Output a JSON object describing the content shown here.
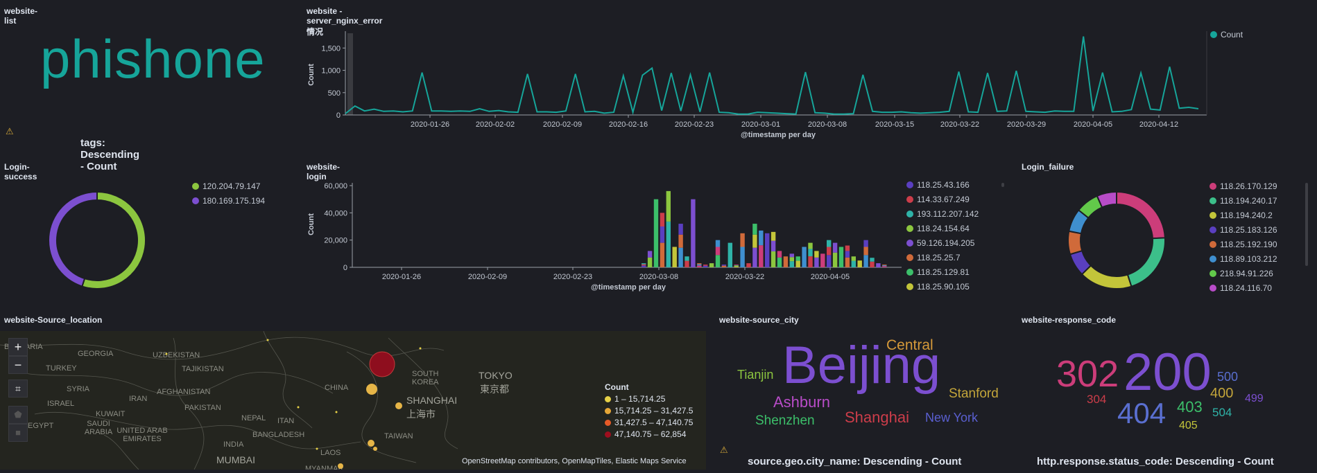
{
  "panels": {
    "website_list": {
      "title": "website-list",
      "value": "phishone",
      "agg_title": "tags: Descending - Count"
    },
    "nginx_error": {
      "title": "website - server_nginx_error 情况",
      "ylabel": "Count",
      "xlabel": "@timestamp per day",
      "yticks": [
        "0",
        "500",
        "1,000",
        "1,500"
      ],
      "xticks": [
        "2020-01-26",
        "2020-02-02",
        "2020-02-09",
        "2020-02-16",
        "2020-02-23",
        "2020-03-01",
        "2020-03-08",
        "2020-03-15",
        "2020-03-22",
        "2020-03-29",
        "2020-04-05",
        "2020-04-12"
      ],
      "legend": "Count"
    },
    "login_success": {
      "title": "Login-success",
      "legend": [
        "120.204.79.147",
        "180.169.175.194"
      ]
    },
    "website_login": {
      "title": "website-login",
      "ylabel": "Count",
      "xlabel": "@timestamp per day",
      "yticks": [
        "0",
        "20,000",
        "40,000",
        "60,000"
      ],
      "xticks": [
        "2020-01-26",
        "2020-02-09",
        "2020-02-23",
        "2020-03-08",
        "2020-03-22",
        "2020-04-05"
      ],
      "legend": [
        "118.25.43.166",
        "114.33.67.249",
        "193.112.207.142",
        "118.24.154.64",
        "59.126.194.205",
        "118.25.25.7",
        "118.25.129.81",
        "118.25.90.105"
      ]
    },
    "login_failure": {
      "title": "Login_failure",
      "legend": [
        "118.26.170.129",
        "118.194.240.17",
        "118.194.240.2",
        "118.25.183.126",
        "118.25.192.190",
        "118.89.103.212",
        "218.94.91.226",
        "118.24.116.70"
      ]
    },
    "source_location": {
      "title": "website-Source_location",
      "zoom_in": "+",
      "zoom_out": "−",
      "labels": [
        "BULGARIA",
        "GEORGIA",
        "UZBEKISTAN",
        "TURKEY",
        "TAJIKISTAN",
        "SYRIA",
        "AFGHANISTAN",
        "IRAN",
        "ISRAEL",
        "PAKISTAN",
        "KUWAIT",
        "NEPAL",
        "EGYPT",
        "SAUDI ARABIA",
        "UNITED ARAB EMIRATES",
        "INDIA",
        "BANGLADESH",
        "MUMBAI",
        "CHINA",
        "SOUTH KOREA",
        "TOKYO",
        "東京都",
        "SHANGHAI",
        "上海市",
        "TAIWAN",
        "LAOS",
        "MYANMAR",
        "ITAN"
      ],
      "legend_title": "Count",
      "legend": [
        "1 – 15,714.25",
        "15,714.25 – 31,427.5",
        "31,427.5 – 47,140.75",
        "47,140.75 – 62,854"
      ],
      "attribution": "OpenStreetMap contributors, OpenMapTiles, Elastic Maps Service"
    },
    "source_city": {
      "title": "website-source_city",
      "agg_title": "source.geo.city_name: Descending - Count",
      "words": [
        "Beijing",
        "Central",
        "Tianjin",
        "Ashburn",
        "Stanford",
        "Shenzhen",
        "Shanghai",
        "New York"
      ]
    },
    "response_code": {
      "title": "website-response_code",
      "agg_title": "http.response.status_code: Descending - Count",
      "words": [
        "200",
        "302",
        "404",
        "500",
        "400",
        "304",
        "403",
        "504",
        "405",
        "499"
      ]
    }
  },
  "colors": {
    "teal": "#16a59a",
    "green": "#8cc63f",
    "purple": "#7c4fd0"
  },
  "chart_data": [
    {
      "type": "line",
      "title": "website - server_nginx_error 情况",
      "xlabel": "@timestamp per day",
      "ylabel": "Count",
      "ylim": [
        0,
        1800
      ],
      "series": [
        {
          "name": "Count",
          "values": [
            30,
            200,
            90,
            130,
            80,
            90,
            70,
            90,
            950,
            90,
            90,
            80,
            90,
            80,
            140,
            80,
            100,
            70,
            60,
            920,
            70,
            70,
            60,
            90,
            920,
            70,
            80,
            40,
            60,
            880,
            60,
            890,
            1050,
            100,
            940,
            90,
            900,
            70,
            950,
            60,
            50,
            20,
            20,
            60,
            50,
            40,
            30,
            20,
            960,
            50,
            40,
            20,
            20,
            30,
            900,
            80,
            60,
            60,
            70,
            50,
            40,
            50,
            60,
            80,
            970,
            70,
            60,
            940,
            80,
            90,
            990,
            80,
            70,
            60,
            90,
            80,
            80,
            1760,
            90,
            950,
            70,
            80,
            120,
            940,
            130,
            110,
            1080,
            150,
            170,
            140
          ]
        }
      ]
    },
    {
      "type": "pie",
      "title": "Login-success",
      "categories": [
        "120.204.79.147",
        "180.169.175.194"
      ],
      "values": [
        55,
        45
      ]
    },
    {
      "type": "bar",
      "title": "website-login",
      "xlabel": "@timestamp per day",
      "ylabel": "Count",
      "ylim": [
        0,
        60000
      ],
      "categories_note": "daily bars from 2020-03-05 to 2020-04-18",
      "values": [
        3000,
        12000,
        50000,
        40000,
        56000,
        15000,
        32000,
        8000,
        50000,
        3000,
        2000,
        3000,
        20000,
        2000,
        18000,
        2000,
        25000,
        3000,
        32000,
        27000,
        25000,
        26000,
        12000,
        8000,
        10000,
        8000,
        15000,
        18000,
        12000,
        10000,
        20000,
        18000,
        15000,
        16000,
        8000,
        5000,
        20000,
        7000,
        3000,
        2000
      ]
    },
    {
      "type": "pie",
      "title": "Login_failure",
      "categories": [
        "118.26.170.129",
        "118.194.240.17",
        "118.194.240.2",
        "118.25.183.126",
        "118.25.192.190",
        "118.89.103.212",
        "218.94.91.226",
        "118.24.116.70"
      ],
      "values": [
        22,
        19,
        16,
        7,
        7,
        7,
        7,
        6
      ]
    }
  ]
}
